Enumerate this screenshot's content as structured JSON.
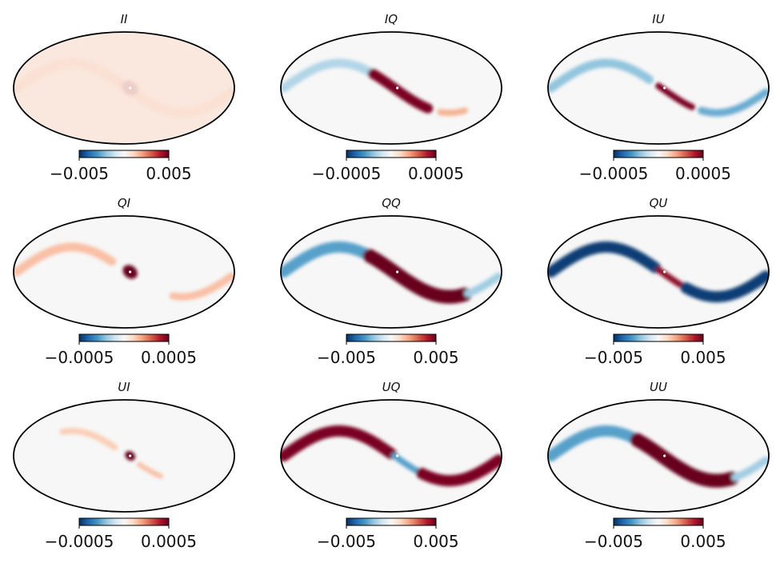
{
  "chart_data": {
    "type": "heatmap",
    "projection": "mollweide",
    "colormap": "RdBu_r",
    "colormap_stops": [
      "#053061",
      "#2166ac",
      "#4393c3",
      "#92c5de",
      "#d1e5f0",
      "#f7f7f7",
      "#fddbc7",
      "#f4a582",
      "#d6604d",
      "#b2182b",
      "#67001f"
    ],
    "grid": false,
    "panels": [
      {
        "id": "II",
        "title": "II",
        "vmin": -0.005,
        "vmax": 0.005,
        "tick_labels": [
          "−0.005",
          "0.005"
        ],
        "features": [
          {
            "kind": "band",
            "lon_start": -175,
            "lon_end": 175,
            "lat_amp": 40,
            "lon_shift": 5,
            "width_deg": 8,
            "value": 0.35
          },
          {
            "kind": "spot",
            "lon": 10,
            "lat": 0,
            "lon_width": 14,
            "lat_width": 11,
            "value": 1.0
          },
          {
            "kind": "broad",
            "value": 0.12
          }
        ]
      },
      {
        "id": "IQ",
        "title": "IQ",
        "vmin": -0.0005,
        "vmax": 0.0005,
        "tick_labels": [
          "−0.0005",
          "0.0005"
        ],
        "features": [
          {
            "kind": "band",
            "lon_start": -175,
            "lon_end": -30,
            "lat_amp": 40,
            "lon_shift": 5,
            "width_deg": 7,
            "value": -0.3
          },
          {
            "kind": "band",
            "lon_start": -30,
            "lon_end": 60,
            "lat_amp": 40,
            "lon_shift": 5,
            "width_deg": 8,
            "value": 0.95
          },
          {
            "kind": "band",
            "lon_start": 80,
            "lon_end": 120,
            "lat_amp": 40,
            "lon_shift": 5,
            "width_deg": 5,
            "value": 0.35
          }
        ]
      },
      {
        "id": "IU",
        "title": "IU",
        "vmin": -0.0005,
        "vmax": 0.0005,
        "tick_labels": [
          "−0.0005",
          "0.0005"
        ],
        "features": [
          {
            "kind": "band",
            "lon_start": -175,
            "lon_end": -15,
            "lat_amp": 40,
            "lon_shift": 5,
            "width_deg": 7,
            "value": -0.4
          },
          {
            "kind": "band",
            "lon_start": 0,
            "lon_end": 55,
            "lat_amp": 40,
            "lon_shift": 5,
            "width_deg": 5,
            "value": 0.95
          },
          {
            "kind": "band",
            "lon_start": 70,
            "lon_end": 175,
            "lat_amp": 40,
            "lon_shift": 5,
            "width_deg": 6,
            "value": -0.5
          }
        ]
      },
      {
        "id": "QI",
        "title": "QI",
        "vmin": -0.0005,
        "vmax": 0.0005,
        "tick_labels": [
          "−0.0005",
          "0.0005"
        ],
        "features": [
          {
            "kind": "band",
            "lon_start": -175,
            "lon_end": -20,
            "lat_amp": 40,
            "lon_shift": 5,
            "width_deg": 7,
            "value": 0.3
          },
          {
            "kind": "spot",
            "lon": 10,
            "lat": 0,
            "lon_width": 13,
            "lat_width": 10,
            "value": 1.0
          },
          {
            "kind": "band",
            "lon_start": 80,
            "lon_end": 175,
            "lat_amp": 40,
            "lon_shift": 5,
            "width_deg": 6,
            "value": 0.3
          }
        ]
      },
      {
        "id": "QQ",
        "title": "QQ",
        "vmin": -0.005,
        "vmax": 0.005,
        "tick_labels": [
          "−0.005",
          "0.005"
        ],
        "features": [
          {
            "kind": "band",
            "lon_start": -175,
            "lon_end": -40,
            "lat_amp": 40,
            "lon_shift": 5,
            "width_deg": 9,
            "value": -0.55
          },
          {
            "kind": "band",
            "lon_start": -35,
            "lon_end": 120,
            "lat_amp": 40,
            "lon_shift": 5,
            "width_deg": 11,
            "value": 1.0
          },
          {
            "kind": "band",
            "lon_start": 125,
            "lon_end": 175,
            "lat_amp": 40,
            "lon_shift": 5,
            "width_deg": 6,
            "value": -0.35
          }
        ]
      },
      {
        "id": "QU",
        "title": "QU",
        "vmin": -0.005,
        "vmax": 0.005,
        "tick_labels": [
          "−0.005",
          "0.005"
        ],
        "features": [
          {
            "kind": "band",
            "lon_start": -175,
            "lon_end": -5,
            "lat_amp": 40,
            "lon_shift": 5,
            "width_deg": 9,
            "value": -0.95
          },
          {
            "kind": "band",
            "lon_start": 0,
            "lon_end": 40,
            "lat_amp": 40,
            "lon_shift": 5,
            "width_deg": 5,
            "value": 0.9
          },
          {
            "kind": "band",
            "lon_start": 45,
            "lon_end": 175,
            "lat_amp": 40,
            "lon_shift": 5,
            "width_deg": 9,
            "value": -0.95
          }
        ]
      },
      {
        "id": "UI",
        "title": "UI",
        "vmin": -0.0005,
        "vmax": 0.0005,
        "tick_labels": [
          "−0.0005",
          "0.0005"
        ],
        "features": [
          {
            "kind": "band",
            "lon_start": -100,
            "lon_end": -15,
            "lat_amp": 40,
            "lon_shift": 5,
            "width_deg": 5,
            "value": 0.25
          },
          {
            "kind": "spot",
            "lon": 10,
            "lat": 0,
            "lon_width": 9,
            "lat_width": 7,
            "value": 1.0
          },
          {
            "kind": "band",
            "lon_start": 25,
            "lon_end": 60,
            "lat_amp": 40,
            "lon_shift": 5,
            "width_deg": 4,
            "value": 0.3
          }
        ]
      },
      {
        "id": "UQ",
        "title": "UQ",
        "vmin": -0.005,
        "vmax": 0.005,
        "tick_labels": [
          "−0.005",
          "0.005"
        ],
        "features": [
          {
            "kind": "band",
            "lon_start": -175,
            "lon_end": 0,
            "lat_amp": 40,
            "lon_shift": 5,
            "width_deg": 9,
            "value": 0.95
          },
          {
            "kind": "band",
            "lon_start": 5,
            "lon_end": 45,
            "lat_amp": 40,
            "lon_shift": 5,
            "width_deg": 5,
            "value": -0.55
          },
          {
            "kind": "band",
            "lon_start": 50,
            "lon_end": 175,
            "lat_amp": 40,
            "lon_shift": 5,
            "width_deg": 9,
            "value": 0.95
          }
        ]
      },
      {
        "id": "UU",
        "title": "UU",
        "vmin": -0.005,
        "vmax": 0.005,
        "tick_labels": [
          "−0.005",
          "0.005"
        ],
        "features": [
          {
            "kind": "band",
            "lon_start": -175,
            "lon_end": -40,
            "lat_amp": 40,
            "lon_shift": 5,
            "width_deg": 9,
            "value": -0.55
          },
          {
            "kind": "band",
            "lon_start": -35,
            "lon_end": 120,
            "lat_amp": 40,
            "lon_shift": 5,
            "width_deg": 11,
            "value": 1.0
          },
          {
            "kind": "band",
            "lon_start": 125,
            "lon_end": 175,
            "lat_amp": 40,
            "lon_shift": 5,
            "width_deg": 6,
            "value": -0.35
          }
        ]
      }
    ]
  }
}
